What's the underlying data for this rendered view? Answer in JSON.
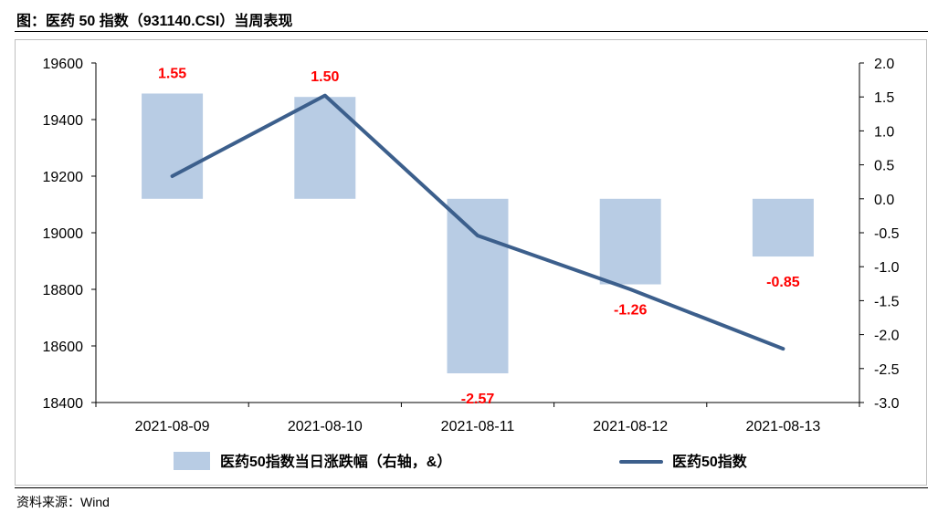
{
  "title": "图：医药 50 指数（931140.CSI）当周表现",
  "source": "资料来源：Wind",
  "chart_data": {
    "type": "bar+line",
    "categories": [
      "2021-08-09",
      "2021-08-10",
      "2021-08-11",
      "2021-08-12",
      "2021-08-13"
    ],
    "series": [
      {
        "name": "医药50指数当日涨跌幅（右轴，&）",
        "type": "bar",
        "axis": "right",
        "values": [
          1.55,
          1.5,
          -2.57,
          -1.26,
          -0.85
        ],
        "data_labels": [
          "1.55",
          "1.50",
          "-2.57",
          "-1.26",
          "-0.85"
        ],
        "color": "#b8cce4"
      },
      {
        "name": "医药50指数",
        "type": "line",
        "axis": "left",
        "values": [
          19200,
          19485,
          18990,
          18800,
          18590
        ],
        "color": "#3c5f8c"
      }
    ],
    "y_left": {
      "min": 18400,
      "max": 19600,
      "ticks": [
        "18400",
        "18600",
        "18800",
        "19000",
        "19200",
        "19400",
        "19600"
      ]
    },
    "y_right": {
      "min": -3.0,
      "max": 2.0,
      "ticks": [
        "2.0",
        "1.5",
        "1.0",
        "0.5",
        "0.0",
        "-0.5",
        "-1.0",
        "-1.5",
        "-2.0",
        "-2.5",
        "-3.0"
      ]
    },
    "grid": false,
    "legend_position": "bottom"
  }
}
